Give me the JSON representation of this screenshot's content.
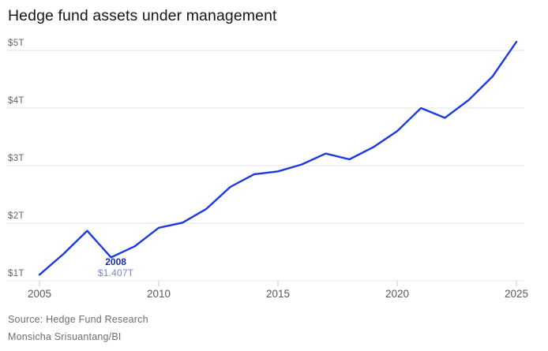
{
  "title": "Hedge fund assets under management",
  "source_line": "Source: Hedge Fund Research",
  "credit_line": "Monsicha Srisuantang/BI",
  "annotation": {
    "year_label": "2008",
    "value_label": "$1.407T"
  },
  "colors": {
    "line": "#1b39e0",
    "annotation_year": "#1f2ca3",
    "annotation_value": "#7585e8",
    "grid": "#e5e5e5",
    "tick": "#c9c9c9",
    "y_axis_label": "#636363",
    "x_axis_label": "#595959",
    "title_text": "#15161a",
    "footnote_text": "#6e6e6e",
    "background": "#ffffff"
  },
  "chart_data": {
    "type": "line",
    "title": "Hedge fund assets under management",
    "series_name": "Hedge fund assets under management (trillions USD)",
    "x": [
      2005,
      2006,
      2007,
      2008,
      2009,
      2010,
      2011,
      2012,
      2013,
      2014,
      2015,
      2016,
      2017,
      2018,
      2019,
      2020,
      2021,
      2022,
      2023,
      2024,
      2025
    ],
    "values": [
      1.105,
      1.465,
      1.868,
      1.407,
      1.6,
      1.92,
      2.01,
      2.25,
      2.63,
      2.85,
      2.9,
      3.02,
      3.21,
      3.11,
      3.32,
      3.6,
      4.0,
      3.83,
      4.14,
      4.55,
      5.15
    ],
    "xlabel": "",
    "ylabel": "",
    "xlim": [
      2005,
      2025
    ],
    "ylim": [
      1,
      5.3
    ],
    "x_ticks": {
      "values": [
        2005,
        2010,
        2015,
        2020,
        2025
      ],
      "labels": [
        "2005",
        "2010",
        "2015",
        "2020",
        "2025"
      ]
    },
    "y_ticks": {
      "values": [
        1,
        2,
        3,
        4,
        5
      ],
      "labels": [
        "$1T",
        "$2T",
        "$3T",
        "$4T",
        "$5T"
      ]
    },
    "grid": "horizontal",
    "legend": "none",
    "annotations": [
      {
        "x": 2008,
        "y": 1.407,
        "line1": "2008",
        "line2": "$1.407T"
      }
    ]
  }
}
